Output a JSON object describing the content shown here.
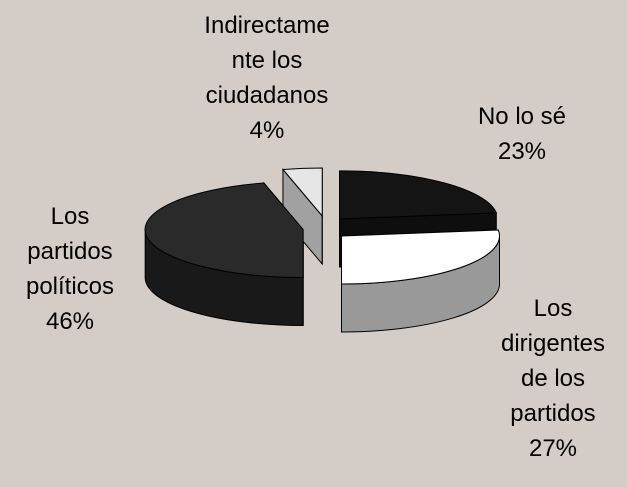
{
  "chart_data": {
    "type": "pie3d",
    "categories": [
      "No lo sé",
      "Los dirigentes de los partidos",
      "Los partidos políticos",
      "Indirectamente los ciudadanos"
    ],
    "values": [
      23,
      27,
      46,
      4
    ],
    "value_labels": [
      "23%",
      "27%",
      "46%",
      "4%"
    ],
    "colors": [
      "#141414",
      "#ffffff",
      "#2a2a2a",
      "#e6e6e6"
    ]
  }
}
